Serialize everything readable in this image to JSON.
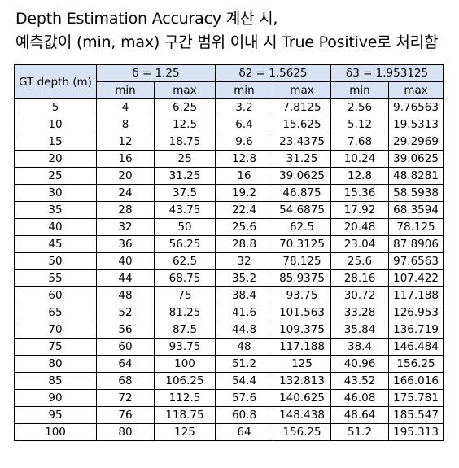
{
  "title_line1": "Depth Estimation Accuracy 계산 시,",
  "title_line2": "예측값이 (min, max) 구간 범위 이내 시 True Positive로 처리함",
  "header": {
    "gt_depth": "GT depth (m)",
    "groups": [
      {
        "label": "δ = 1.25"
      },
      {
        "label": "δ2 = 1.5625"
      },
      {
        "label": "δ3 = 1.953125"
      }
    ],
    "min_label": "min",
    "max_label": "max"
  },
  "rows": [
    [
      "5",
      "4",
      "6.25",
      "3.2",
      "7.8125",
      "2.56",
      "9.76563"
    ],
    [
      "10",
      "8",
      "12.5",
      "6.4",
      "15.625",
      "5.12",
      "19.5313"
    ],
    [
      "15",
      "12",
      "18.75",
      "9.6",
      "23.4375",
      "7.68",
      "29.2969"
    ],
    [
      "20",
      "16",
      "25",
      "12.8",
      "31.25",
      "10.24",
      "39.0625"
    ],
    [
      "25",
      "20",
      "31.25",
      "16",
      "39.0625",
      "12.8",
      "48.8281"
    ],
    [
      "30",
      "24",
      "37.5",
      "19.2",
      "46.875",
      "15.36",
      "58.5938"
    ],
    [
      "35",
      "28",
      "43.75",
      "22.4",
      "54.6875",
      "17.92",
      "68.3594"
    ],
    [
      "40",
      "32",
      "50",
      "25.6",
      "62.5",
      "20.48",
      "78.125"
    ],
    [
      "45",
      "36",
      "56.25",
      "28.8",
      "70.3125",
      "23.04",
      "87.8906"
    ],
    [
      "50",
      "40",
      "62.5",
      "32",
      "78.125",
      "25.6",
      "97.6563"
    ],
    [
      "55",
      "44",
      "68.75",
      "35.2",
      "85.9375",
      "28.16",
      "107.422"
    ],
    [
      "60",
      "48",
      "75",
      "38.4",
      "93.75",
      "30.72",
      "117.188"
    ],
    [
      "65",
      "52",
      "81.25",
      "41.6",
      "101.563",
      "33.28",
      "126.953"
    ],
    [
      "70",
      "56",
      "87.5",
      "44.8",
      "109.375",
      "35.84",
      "136.719"
    ],
    [
      "75",
      "60",
      "93.75",
      "48",
      "117.188",
      "38.4",
      "146.484"
    ],
    [
      "80",
      "64",
      "100",
      "51.2",
      "125",
      "40.96",
      "156.25"
    ],
    [
      "85",
      "68",
      "106.25",
      "54.4",
      "132.813",
      "43.52",
      "166.016"
    ],
    [
      "90",
      "72",
      "112.5",
      "57.6",
      "140.625",
      "46.08",
      "175.781"
    ],
    [
      "95",
      "76",
      "118.75",
      "60.8",
      "148.438",
      "48.64",
      "185.547"
    ],
    [
      "100",
      "80",
      "125",
      "64",
      "156.25",
      "51.2",
      "195.313"
    ]
  ]
}
